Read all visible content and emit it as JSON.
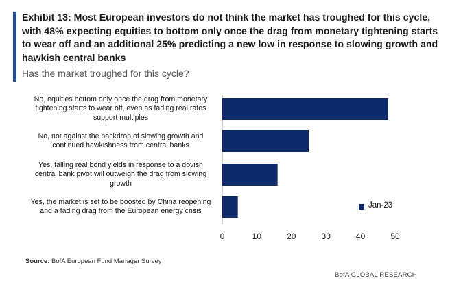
{
  "title": "Exhibit 13: Most European investors do not think the market has troughed for this cycle, with 48% expecting equities to bottom only once the drag from monetary tightening starts to wear off and an additional 25% predicting a new low in response to slowing growth and hawkish central banks",
  "subtitle": "Has the market troughed for this cycle?",
  "source_prefix": "Source:",
  "source_text": " BofA European Fund Manager Survey",
  "footer": "BofA GLOBAL RESEARCH",
  "colors": {
    "bar": "#0f2a6b",
    "accent": "#1f4e9c"
  },
  "chart_data": {
    "type": "bar",
    "orientation": "horizontal",
    "categories": [
      "No, equities bottom  only once the drag from monetary tightening  starts to wear off, even as fading real rates support multiples",
      "No, not against the backdrop of slowing growth and continued hawkishness from central banks",
      "Yes, falling real bond yields in response to a dovish central bank pivot will outweigh the drag from slowing growth",
      "Yes, the market is set to be boosted by China reopening and a fading drag from the European energy crisis"
    ],
    "category_lines": [
      [
        "No, equities bottom  only once the drag from monetary",
        "tightening  starts to wear off, even as fading real rates",
        "support multiples"
      ],
      [
        "No, not against the backdrop of slowing growth and",
        "continued hawkishness from central banks"
      ],
      [
        "Yes, falling real bond yields in response to a dovish",
        "central bank pivot will outweigh the drag from slowing",
        "growth"
      ],
      [
        "Yes, the market is set to be boosted by China reopening",
        "and a fading drag from the European energy crisis"
      ]
    ],
    "series": [
      {
        "name": "Jan-23",
        "values": [
          48,
          25,
          16,
          4.5
        ]
      }
    ],
    "xlim": [
      0,
      50
    ],
    "xticks": [
      "0",
      "10",
      "20",
      "30",
      "40",
      "50"
    ],
    "xlabel": "",
    "ylabel": "",
    "grid": false,
    "legend_position": "right"
  }
}
